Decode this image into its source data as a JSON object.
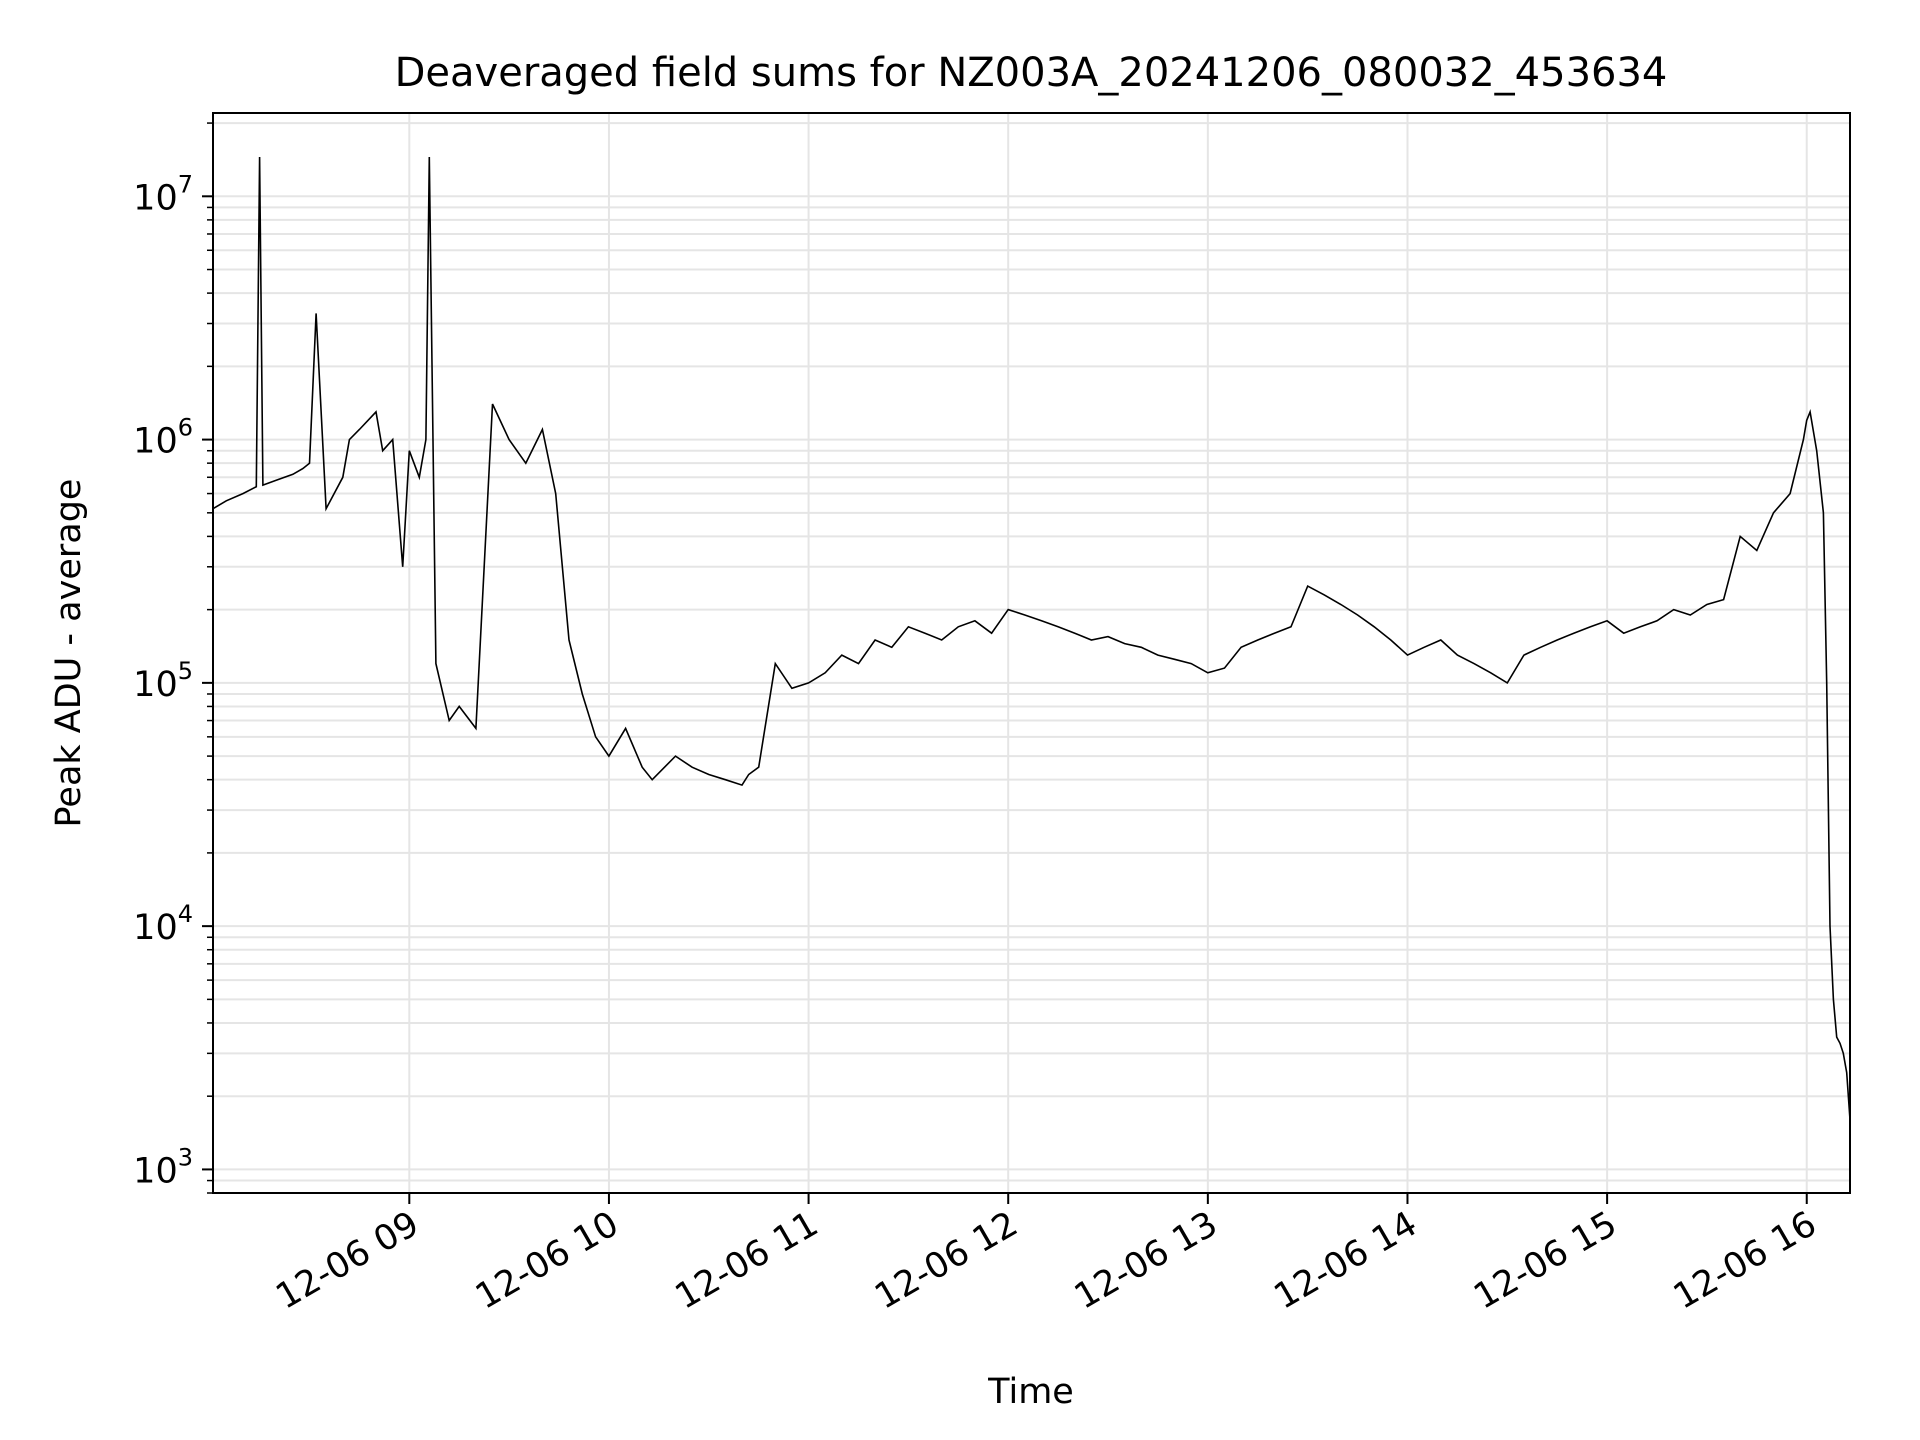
{
  "chart_data": {
    "type": "line",
    "title": "Deaveraged field sums for NZ003A_20241206_080032_453634",
    "xlabel": "Time",
    "ylabel": "Peak ADU - average",
    "yscale": "log",
    "ylim": [
      800,
      22000000
    ],
    "xlim": [
      "12-06 08:01",
      "12-06 16:13"
    ],
    "grid": "major and minor",
    "line_color": "#000000",
    "grid_color": "#e5e5e5",
    "x_tick_labels": [
      "12-06 09",
      "12-06 10",
      "12-06 11",
      "12-06 12",
      "12-06 13",
      "12-06 14",
      "12-06 15",
      "12-06 16"
    ],
    "y_tick_labels": [
      {
        "base": "10",
        "exp": "3",
        "value": 1000
      },
      {
        "base": "10",
        "exp": "4",
        "value": 10000
      },
      {
        "base": "10",
        "exp": "5",
        "value": 100000
      },
      {
        "base": "10",
        "exp": "6",
        "value": 1000000
      },
      {
        "base": "10",
        "exp": "7",
        "value": 10000000
      }
    ],
    "series": [
      {
        "x": [
          "12-06 08:01",
          "12-06 08:05",
          "12-06 08:10",
          "12-06 08:14",
          "12-06 08:15",
          "12-06 08:16",
          "12-06 08:20",
          "12-06 08:25",
          "12-06 08:28",
          "12-06 08:30",
          "12-06 08:32",
          "12-06 08:35",
          "12-06 08:40",
          "12-06 08:42",
          "12-06 08:45",
          "12-06 08:50",
          "12-06 08:52",
          "12-06 08:55",
          "12-06 08:58",
          "12-06 09:00",
          "12-06 09:03",
          "12-06 09:05",
          "12-06 09:06",
          "12-06 09:08",
          "12-06 09:12",
          "12-06 09:15",
          "12-06 09:20",
          "12-06 09:25",
          "12-06 09:30",
          "12-06 09:35",
          "12-06 09:40",
          "12-06 09:44",
          "12-06 09:48",
          "12-06 09:52",
          "12-06 09:56",
          "12-06 10:00",
          "12-06 10:05",
          "12-06 10:10",
          "12-06 10:13",
          "12-06 10:20",
          "12-06 10:25",
          "12-06 10:30",
          "12-06 10:35",
          "12-06 10:40",
          "12-06 10:42",
          "12-06 10:45",
          "12-06 10:50",
          "12-06 10:55",
          "12-06 11:00",
          "12-06 11:05",
          "12-06 11:10",
          "12-06 11:15",
          "12-06 11:20",
          "12-06 11:25",
          "12-06 11:30",
          "12-06 11:35",
          "12-06 11:40",
          "12-06 11:45",
          "12-06 11:50",
          "12-06 11:55",
          "12-06 12:00",
          "12-06 12:05",
          "12-06 12:10",
          "12-06 12:15",
          "12-06 12:20",
          "12-06 12:25",
          "12-06 12:30",
          "12-06 12:35",
          "12-06 12:40",
          "12-06 12:45",
          "12-06 12:50",
          "12-06 12:55",
          "12-06 13:00",
          "12-06 13:05",
          "12-06 13:10",
          "12-06 13:15",
          "12-06 13:20",
          "12-06 13:25",
          "12-06 13:30",
          "12-06 13:35",
          "12-06 13:40",
          "12-06 13:45",
          "12-06 13:50",
          "12-06 13:55",
          "12-06 14:00",
          "12-06 14:05",
          "12-06 14:10",
          "12-06 14:15",
          "12-06 14:20",
          "12-06 14:25",
          "12-06 14:30",
          "12-06 14:35",
          "12-06 14:40",
          "12-06 14:45",
          "12-06 14:50",
          "12-06 14:55",
          "12-06 15:00",
          "12-06 15:05",
          "12-06 15:10",
          "12-06 15:15",
          "12-06 15:20",
          "12-06 15:25",
          "12-06 15:30",
          "12-06 15:35",
          "12-06 15:40",
          "12-06 15:45",
          "12-06 15:50",
          "12-06 15:55",
          "12-06 15:59",
          "12-06 16:00",
          "12-06 16:01",
          "12-06 16:03",
          "12-06 16:05",
          "12-06 16:06",
          "12-06 16:07",
          "12-06 16:08",
          "12-06 16:09",
          "12-06 16:10",
          "12-06 16:11",
          "12-06 16:12",
          "12-06 16:13"
        ],
        "y": [
          520000,
          560000,
          600000,
          640000,
          14500000,
          650000,
          680000,
          720000,
          760000,
          800000,
          3300000,
          520000,
          700000,
          1000000,
          1100000,
          1300000,
          900000,
          1000000,
          300000,
          900000,
          700000,
          1000000,
          14500000,
          120000,
          70000,
          80000,
          65000,
          1400000,
          1000000,
          800000,
          1100000,
          600000,
          150000,
          90000,
          60000,
          50000,
          65000,
          45000,
          40000,
          50000,
          45000,
          42000,
          40000,
          38000,
          42000,
          45000,
          120000,
          95000,
          100000,
          110000,
          130000,
          120000,
          150000,
          140000,
          170000,
          160000,
          150000,
          170000,
          180000,
          160000,
          200000,
          190000,
          180000,
          170000,
          160000,
          150000,
          155000,
          145000,
          140000,
          130000,
          125000,
          120000,
          110000,
          115000,
          140000,
          150000,
          160000,
          170000,
          250000,
          230000,
          210000,
          190000,
          170000,
          150000,
          130000,
          140000,
          150000,
          130000,
          120000,
          110000,
          100000,
          130000,
          140000,
          150000,
          160000,
          170000,
          180000,
          160000,
          170000,
          180000,
          200000,
          190000,
          210000,
          220000,
          400000,
          350000,
          500000,
          600000,
          1000000,
          1200000,
          1300000,
          900000,
          500000,
          100000,
          10000,
          5000,
          3500,
          3300,
          3000,
          2500,
          1600
        ]
      }
    ]
  }
}
